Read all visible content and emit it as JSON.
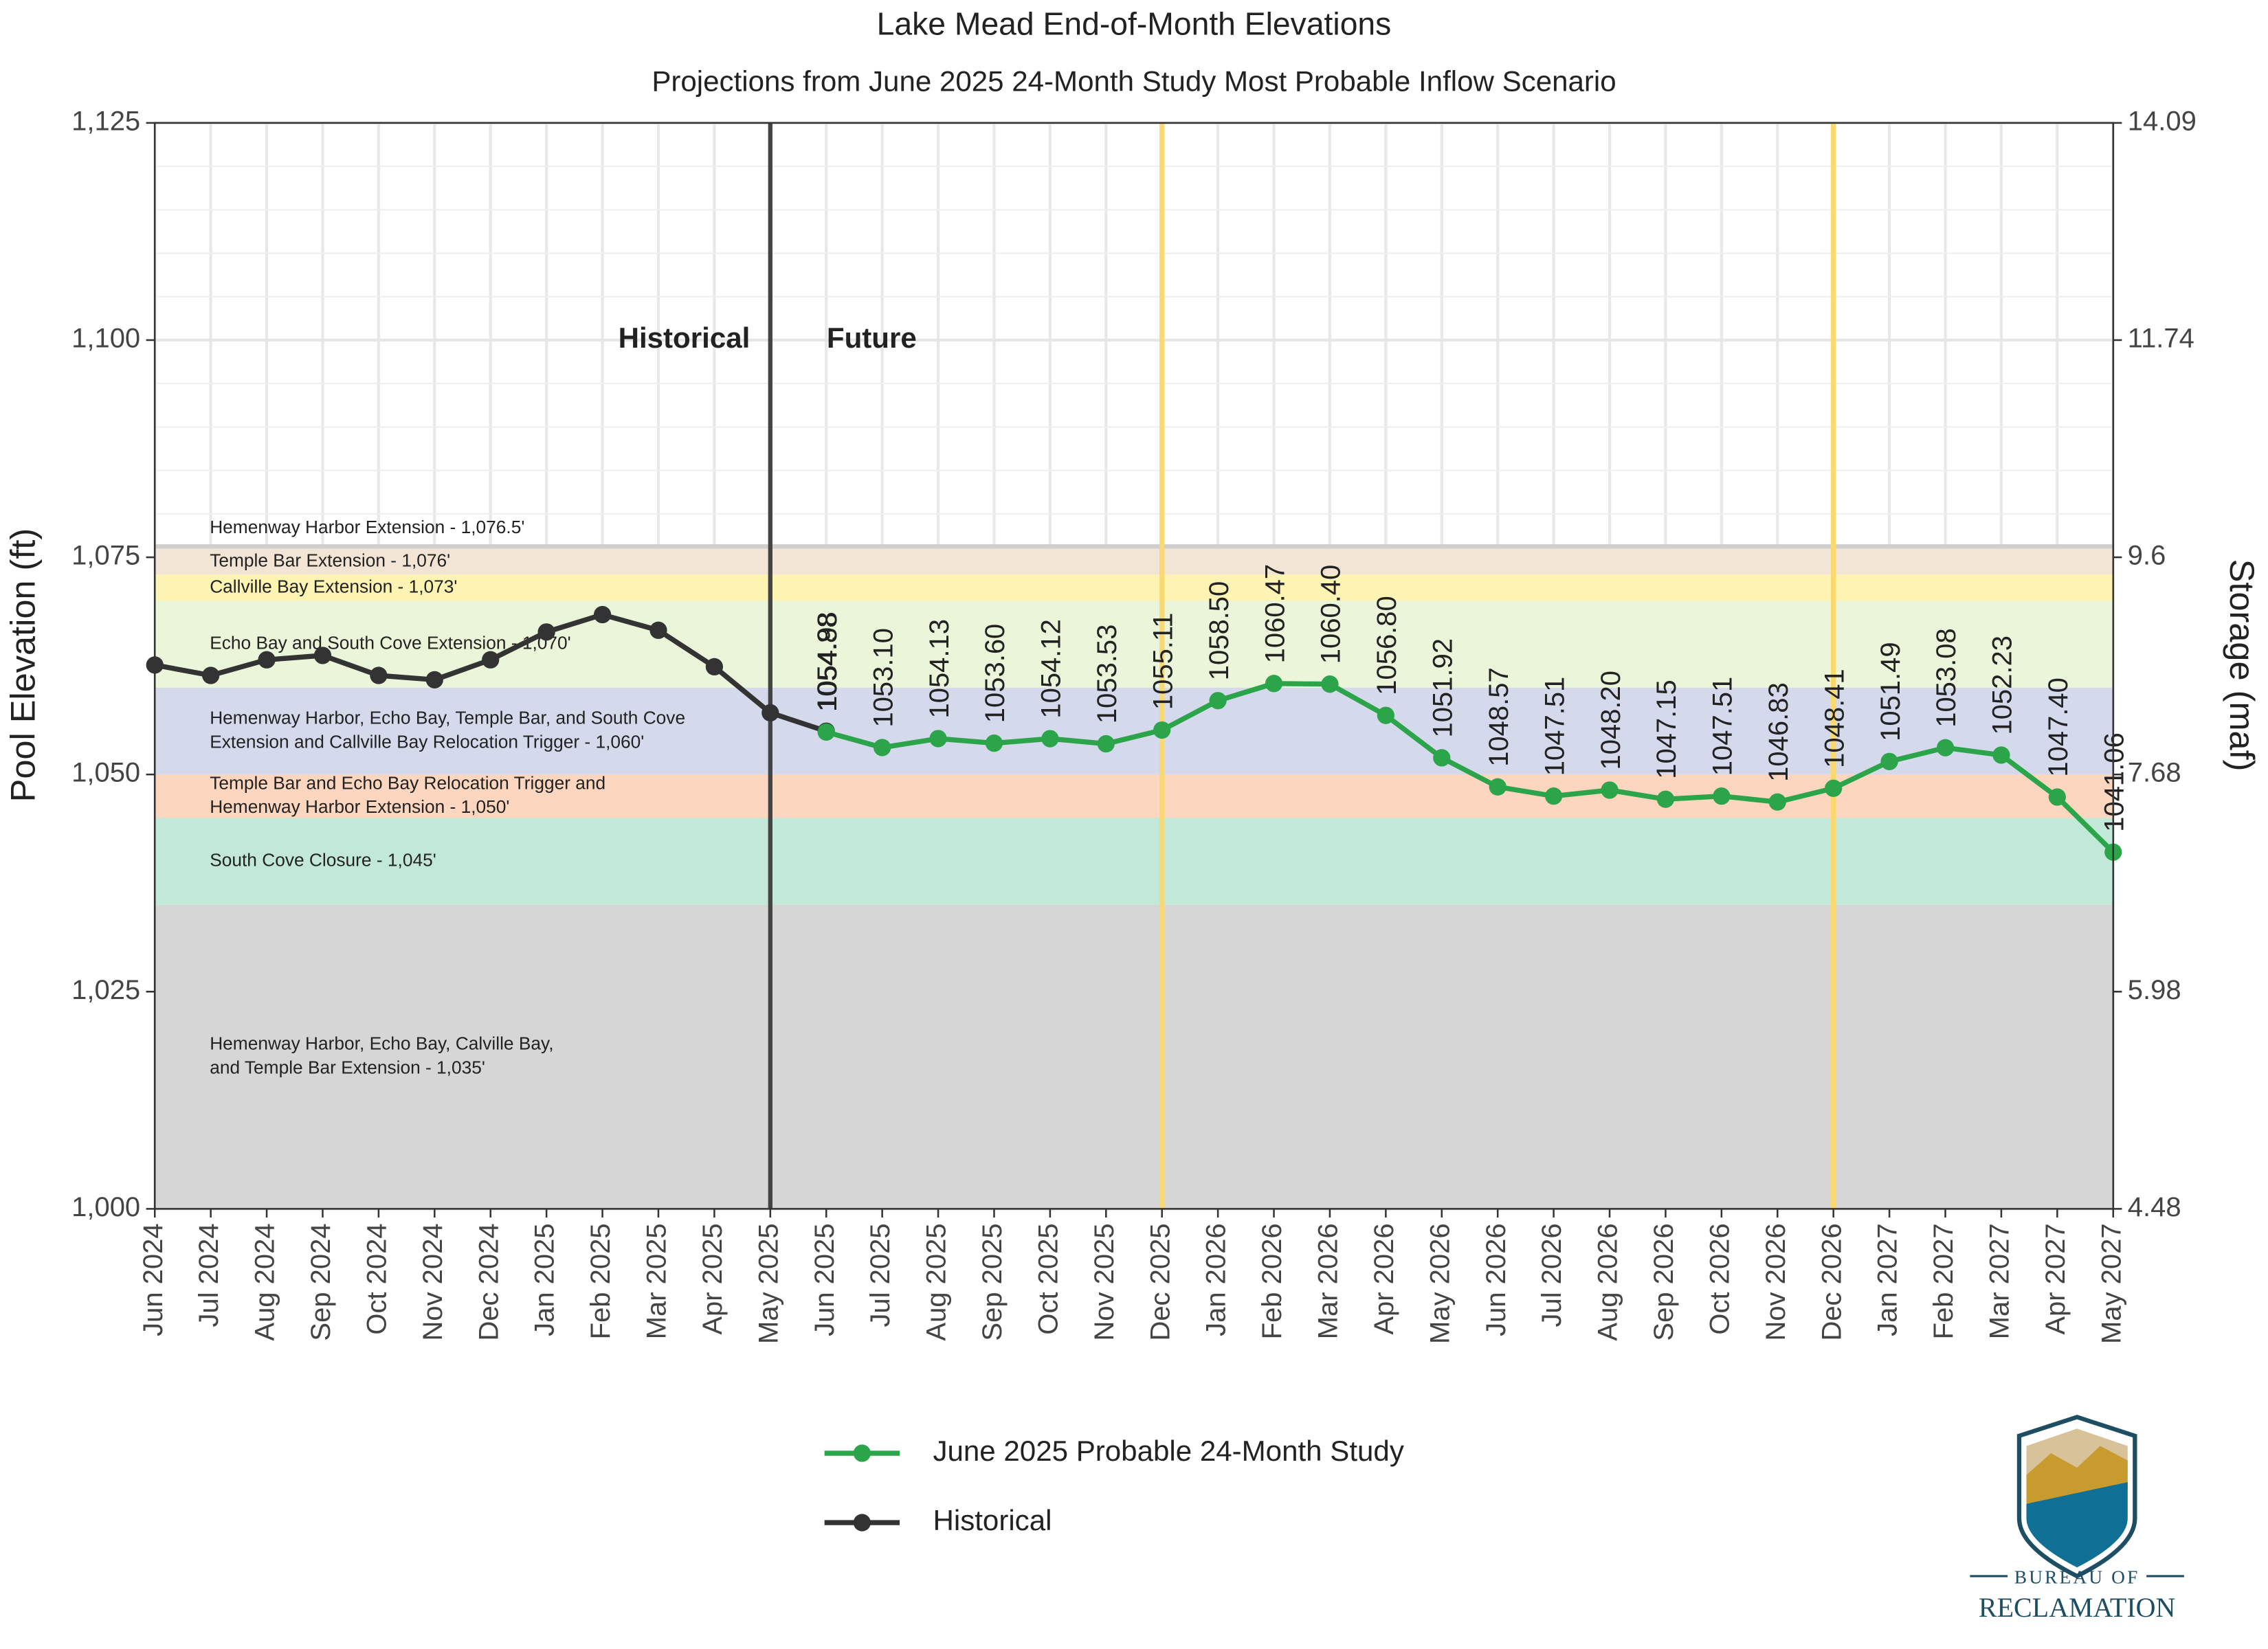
{
  "chart_data": {
    "type": "line",
    "title": "Lake Mead End-of-Month Elevations",
    "subtitle": "Projections from June 2025 24-Month Study Most Probable Inflow Scenario",
    "y_label": "Pool Elevation (ft)",
    "y2_label": "Storage (maf)",
    "categories": [
      "Jun 2024",
      "Jul 2024",
      "Aug 2024",
      "Sep 2024",
      "Oct 2024",
      "Nov 2024",
      "Dec 2024",
      "Jan 2025",
      "Feb 2025",
      "Mar 2025",
      "Apr 2025",
      "May 2025",
      "Jun 2025",
      "Jul 2025",
      "Aug 2025",
      "Sep 2025",
      "Oct 2025",
      "Nov 2025",
      "Dec 2025",
      "Jan 2026",
      "Feb 2026",
      "Mar 2026",
      "Apr 2026",
      "May 2026",
      "Jun 2026",
      "Jul 2026",
      "Aug 2026",
      "Sep 2026",
      "Oct 2026",
      "Nov 2026",
      "Dec 2026",
      "Jan 2027",
      "Feb 2027",
      "Mar 2027",
      "Apr 2027",
      "May 2027"
    ],
    "ylim": [
      1000,
      1125
    ],
    "yticks": [
      {
        "value": 1000,
        "label": "1,000"
      },
      {
        "value": 1025,
        "label": "1,025"
      },
      {
        "value": 1050,
        "label": "1,050"
      },
      {
        "value": 1075,
        "label": "1,075"
      },
      {
        "value": 1100,
        "label": "1,100"
      },
      {
        "value": 1125,
        "label": "1,125"
      }
    ],
    "y2lim": [
      4.48,
      14.09
    ],
    "y2ticks": [
      4.48,
      5.98,
      7.68,
      9.6,
      {
        "value": 11.74,
        "label": "11.74"
      },
      14.09
    ],
    "grid": true,
    "series": [
      {
        "name": "June 2025 Probable 24-Month Study",
        "color": "#2ca449",
        "values": [
          null,
          null,
          null,
          null,
          null,
          null,
          null,
          null,
          null,
          null,
          null,
          null,
          1054.88,
          1053.1,
          1054.13,
          1053.6,
          1054.12,
          1053.53,
          1055.11,
          1058.5,
          1060.47,
          1060.4,
          1056.8,
          1051.92,
          1048.57,
          1047.51,
          1048.2,
          1047.15,
          1047.51,
          1046.83,
          1048.41,
          1051.49,
          1053.08,
          1052.23,
          1047.4,
          1041.06
        ],
        "value_labels": [
          null,
          null,
          null,
          null,
          null,
          null,
          null,
          null,
          null,
          null,
          null,
          null,
          "1054.88",
          "1053.10",
          "1054.13",
          "1053.60",
          "1054.12",
          "1053.53",
          "1055.11",
          "1058.50",
          "1060.47",
          "1060.40",
          "1056.80",
          "1051.92",
          "1048.57",
          "1047.51",
          "1048.20",
          "1047.15",
          "1047.51",
          "1046.83",
          "1048.41",
          "1051.49",
          "1053.08",
          "1052.23",
          "1047.40",
          "1041.06"
        ]
      },
      {
        "name": "Historical",
        "color": "#333333",
        "values": [
          1062.6,
          1061.4,
          1063.2,
          1063.7,
          1061.4,
          1060.9,
          1063.2,
          1066.4,
          1068.4,
          1066.6,
          1062.4,
          1057.1,
          1054.98,
          null,
          null,
          null,
          null,
          null,
          null,
          null,
          null,
          null,
          null,
          null,
          null,
          null,
          null,
          null,
          null,
          null,
          null,
          null,
          null,
          null,
          null,
          null
        ],
        "value_labels": [
          null,
          null,
          null,
          null,
          null,
          null,
          null,
          null,
          null,
          null,
          null,
          null,
          "1054.98",
          null,
          null,
          null,
          null,
          null,
          null,
          null,
          null,
          null,
          null,
          null,
          null,
          null,
          null,
          null,
          null,
          null,
          null,
          null,
          null,
          null,
          null,
          null
        ]
      }
    ],
    "bands": [
      {
        "from": 1000,
        "to": 1035,
        "color": "#d6d6d6",
        "label": [
          "Hemenway Harbor, Echo Bay, Calville Bay,",
          "and Temple Bar Extension - 1,035'"
        ]
      },
      {
        "from": 1035,
        "to": 1045,
        "color": "#c2e9d7",
        "label": [
          "South Cove Closure - 1,045'"
        ]
      },
      {
        "from": 1045,
        "to": 1050,
        "color": "#fcd6be",
        "label": [
          "Temple Bar and Echo Bay Relocation Trigger and",
          "Hemenway Harbor Extension - 1,050'"
        ]
      },
      {
        "from": 1050,
        "to": 1060,
        "color": "#d4d9ec",
        "label": [
          "Hemenway Harbor, Echo Bay, Temple Bar, and South Cove",
          "Extension and Callville Bay Relocation Trigger - 1,060'"
        ]
      },
      {
        "from": 1060,
        "to": 1070,
        "color": "#eaf5d9",
        "label": [
          "Echo Bay and South Cove Extension - 1,070'"
        ]
      },
      {
        "from": 1070,
        "to": 1073,
        "color": "#fdf3b3",
        "label": [
          "Callville Bay Extension - 1,073'"
        ]
      },
      {
        "from": 1073,
        "to": 1076,
        "color": "#f2e5d5",
        "label": [
          "Temple Bar Extension - 1,076'"
        ]
      },
      {
        "from": 1076,
        "to": 1076.5,
        "color": "#cfcfcf",
        "label": [
          "Hemenway Harbor Extension - 1,076.5'"
        ]
      }
    ],
    "divider": "May 2025",
    "highlights": [
      "Dec 2025",
      "Dec 2026"
    ],
    "annotations": [
      "Historical",
      "Future"
    ],
    "logo": [
      "BUREAU OF",
      "RECLAMATION"
    ]
  }
}
